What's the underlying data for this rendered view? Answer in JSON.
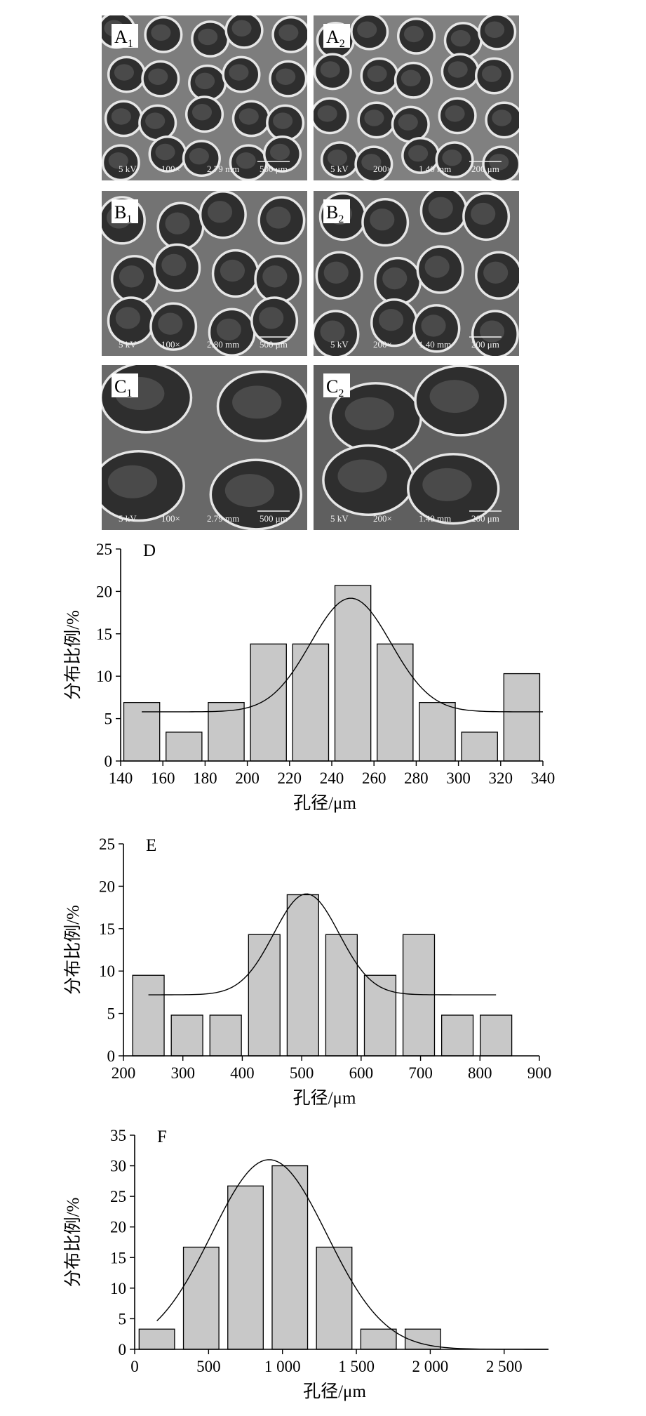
{
  "sem_panels": [
    {
      "label": "A",
      "subscript": "1",
      "scale": [
        "5 kV",
        "100×",
        "2.79 mm",
        "500 μm"
      ],
      "shade": "#7d7d7d"
    },
    {
      "label": "A",
      "subscript": "2",
      "scale": [
        "5 kV",
        "200×",
        "1.40 mm",
        "200 μm"
      ],
      "shade": "#808080"
    },
    {
      "label": "B",
      "subscript": "1",
      "scale": [
        "5 kV",
        "100×",
        "2.80 mm",
        "500 μm"
      ],
      "shade": "#737373"
    },
    {
      "label": "B",
      "subscript": "2",
      "scale": [
        "5 kV",
        "200×",
        "1.40 mm",
        "200 μm"
      ],
      "shade": "#6e6e6e"
    },
    {
      "label": "C",
      "subscript": "1",
      "scale": [
        "5 kV",
        "100×",
        "2.79 mm",
        "500 μm"
      ],
      "shade": "#686868"
    },
    {
      "label": "C",
      "subscript": "2",
      "scale": [
        "5 kV",
        "200×",
        "1.40 mm",
        "200 μm"
      ],
      "shade": "#5f5f5f"
    }
  ],
  "chart_data": [
    {
      "panel": "D",
      "type": "bar",
      "xlabel": "孔径/μm",
      "ylabel": "分布比例/%",
      "xlim": [
        140,
        340
      ],
      "ylim": [
        0,
        25
      ],
      "xticks": [
        140,
        160,
        180,
        200,
        220,
        240,
        260,
        280,
        300,
        320,
        340
      ],
      "xtick_labels": [
        "140",
        "160",
        "180",
        "200",
        "220",
        "240",
        "260",
        "280",
        "300",
        "320",
        "340"
      ],
      "yticks": [
        0,
        5,
        10,
        15,
        20,
        25
      ],
      "ytick_labels": [
        "0",
        "5",
        "10",
        "15",
        "20",
        "25"
      ],
      "bin_width": 17,
      "bin_centers": [
        150,
        170,
        190,
        210,
        230,
        250,
        270,
        290,
        310,
        330
      ],
      "values": [
        6.9,
        3.4,
        6.9,
        13.8,
        13.8,
        20.7,
        13.8,
        6.9,
        3.4,
        10.3
      ],
      "fit": {
        "baseline": 5.8,
        "amplitude": 13.4,
        "center": 249,
        "sigma": 19,
        "x_from": 150,
        "x_to": 340
      },
      "bar_color": "#c8c8c8"
    },
    {
      "panel": "E",
      "type": "bar",
      "xlabel": "孔径/μm",
      "ylabel": "分布比例/%",
      "xlim": [
        200,
        900
      ],
      "ylim": [
        0,
        25
      ],
      "xticks": [
        200,
        300,
        400,
        500,
        600,
        700,
        800,
        900
      ],
      "xtick_labels": [
        "200",
        "300",
        "400",
        "500",
        "600",
        "700",
        "800",
        "900"
      ],
      "yticks": [
        0,
        5,
        10,
        15,
        20,
        25
      ],
      "ytick_labels": [
        "0",
        "5",
        "10",
        "15",
        "20",
        "25"
      ],
      "bin_width": 53,
      "bin_centers": [
        242,
        307,
        372,
        437,
        502,
        567,
        632,
        697,
        762,
        827
      ],
      "values": [
        9.5,
        4.8,
        4.8,
        14.3,
        19.0,
        14.3,
        9.5,
        14.3,
        4.8,
        4.8
      ],
      "fit": {
        "baseline": 7.2,
        "amplitude": 11.9,
        "center": 508,
        "sigma": 55,
        "x_from": 242,
        "x_to": 827
      },
      "bar_color": "#c8c8c8"
    },
    {
      "panel": "F",
      "type": "bar",
      "xlabel": "孔径/μm",
      "ylabel": "分布比例/%",
      "xlim": [
        0,
        2800
      ],
      "ylim": [
        0,
        35
      ],
      "xticks": [
        0,
        500,
        1000,
        1500,
        2000,
        2500
      ],
      "xtick_labels": [
        "0",
        "500",
        "1 000",
        "1 500",
        "2 000",
        "2 500"
      ],
      "yticks": [
        0,
        5,
        10,
        15,
        20,
        25,
        30,
        35
      ],
      "ytick_labels": [
        "0",
        "5",
        "10",
        "15",
        "20",
        "25",
        "30",
        "35"
      ],
      "bin_width": 240,
      "bin_centers": [
        150,
        450,
        750,
        1050,
        1350,
        1650,
        1950
      ],
      "values": [
        3.3,
        16.7,
        26.7,
        30.0,
        16.7,
        3.3,
        3.3
      ],
      "fit": {
        "baseline": 0,
        "amplitude": 31,
        "center": 910,
        "sigma": 390,
        "x_from": 150,
        "x_to": 2800
      },
      "bar_color": "#c8c8c8"
    }
  ]
}
